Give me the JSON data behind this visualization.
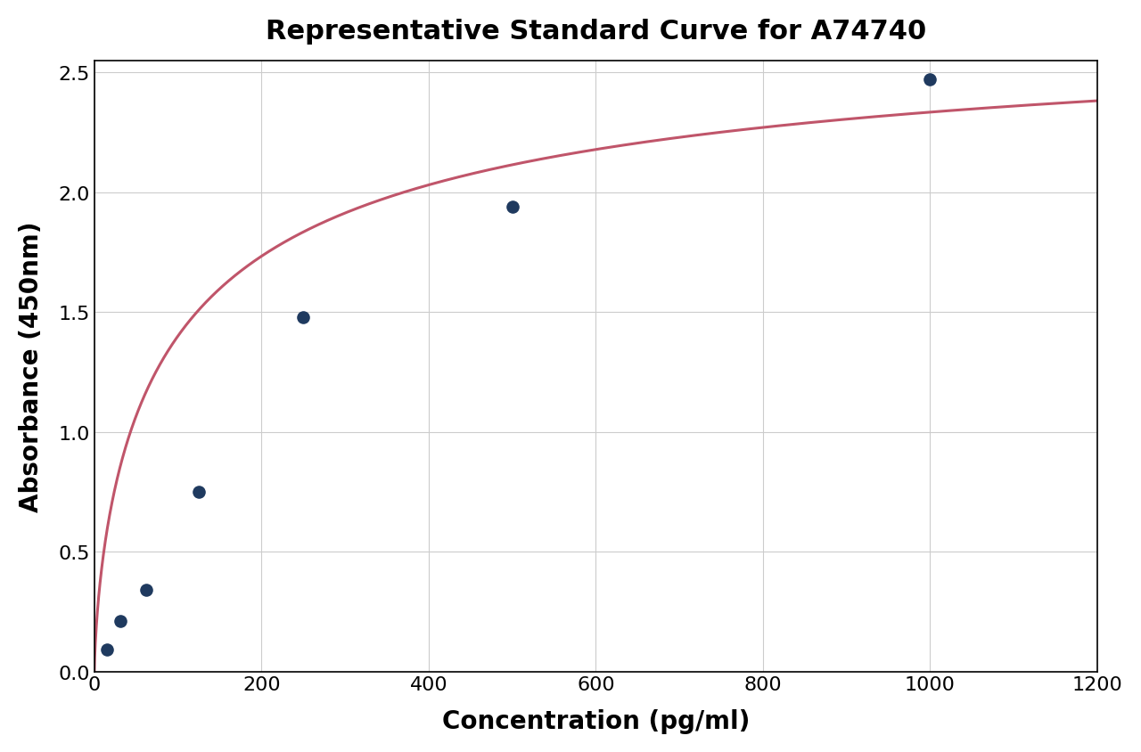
{
  "title": "Representative Standard Curve for A74740",
  "xlabel": "Concentration (pg/ml)",
  "ylabel": "Absorbance (450nm)",
  "scatter_x": [
    15.6,
    31.2,
    62.5,
    125,
    250,
    500,
    1000
  ],
  "scatter_y": [
    0.09,
    0.21,
    0.34,
    0.75,
    1.48,
    1.94,
    2.47
  ],
  "dot_color": "#1f3a5f",
  "curve_color": "#c0556a",
  "xlim": [
    0,
    1200
  ],
  "ylim": [
    0.0,
    2.55
  ],
  "xticks": [
    0,
    200,
    400,
    600,
    800,
    1000,
    1200
  ],
  "yticks": [
    0.0,
    0.5,
    1.0,
    1.5,
    2.0,
    2.5
  ],
  "title_fontsize": 22,
  "label_fontsize": 20,
  "tick_fontsize": 16,
  "dot_size": 90,
  "curve_linewidth": 2.2,
  "grid_color": "#cccccc",
  "background_color": "#ffffff"
}
